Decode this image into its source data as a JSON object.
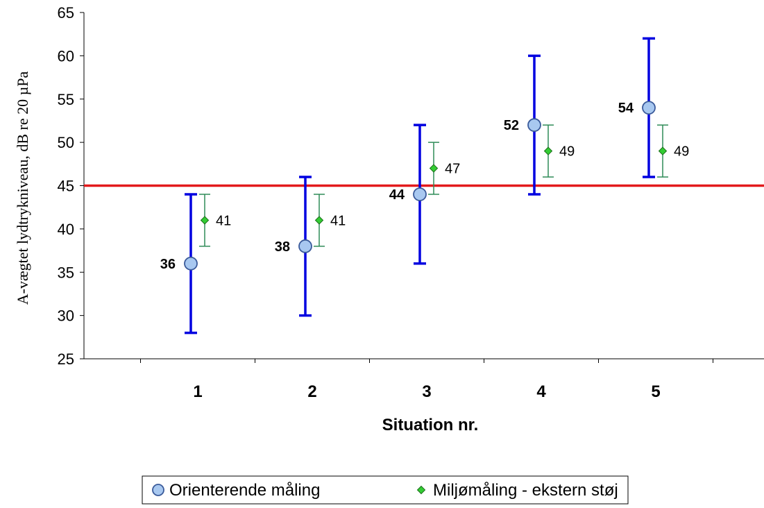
{
  "chart_data": {
    "type": "scatter",
    "title": "",
    "xlabel": "Situation nr.",
    "ylabel": "A-vægtet lydtrykniveau, dB re 20 µPa",
    "categories": [
      "1",
      "2",
      "3",
      "4",
      "5"
    ],
    "ylim": [
      25,
      65
    ],
    "yticks": [
      25,
      30,
      35,
      40,
      45,
      50,
      55,
      60,
      65
    ],
    "grid": false,
    "legend_position": "bottom",
    "reference_line": {
      "y": 45,
      "color": "#e31a1c"
    },
    "series": [
      {
        "name": "Orienterende måling",
        "marker": "circle",
        "color": "#a8c8f0",
        "error_color": "#0000e0",
        "values": [
          36,
          38,
          44,
          52,
          54
        ],
        "labels": [
          "36",
          "38",
          "44",
          "52",
          "54"
        ],
        "error_low": [
          28,
          30,
          36,
          44,
          46
        ],
        "error_high": [
          44,
          46,
          52,
          60,
          62
        ]
      },
      {
        "name": "Miljømåling - ekstern støj",
        "marker": "diamond",
        "color": "#33cc33",
        "error_color": "#2e8b57",
        "values": [
          41,
          41,
          47,
          49,
          49
        ],
        "labels": [
          "41",
          "41",
          "47",
          "49",
          "49"
        ],
        "error_low": [
          38,
          38,
          44,
          46,
          46
        ],
        "error_high": [
          44,
          44,
          50,
          52,
          52
        ]
      }
    ]
  }
}
